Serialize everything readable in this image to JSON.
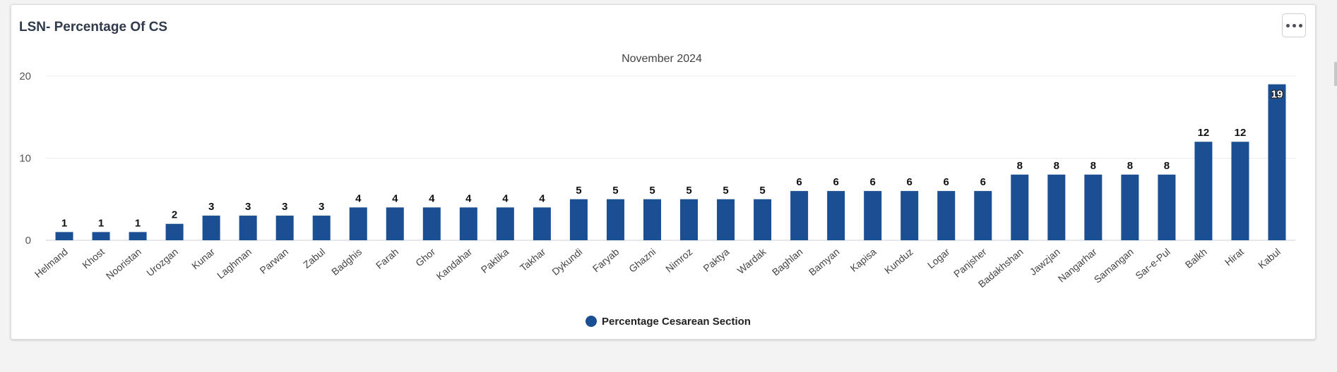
{
  "card": {
    "title": "LSN- Percentage Of CS",
    "menu_icon": "more-horizontal-icon"
  },
  "chart_data": {
    "type": "bar",
    "subtitle": "November 2024",
    "series": [
      {
        "name": "Percentage Cesarean Section",
        "color": "#1b4f93",
        "values": [
          1,
          1,
          1,
          2,
          3,
          3,
          3,
          3,
          4,
          4,
          4,
          4,
          4,
          4,
          5,
          5,
          5,
          5,
          5,
          5,
          6,
          6,
          6,
          6,
          6,
          6,
          8,
          8,
          8,
          8,
          8,
          12,
          12,
          19
        ]
      }
    ],
    "categories": [
      "Helmand",
      "Khost",
      "Nooristan",
      "Urozgan",
      "Kunar",
      "Laghman",
      "Parwan",
      "Zabul",
      "Badghis",
      "Farah",
      "Ghor",
      "Kandahar",
      "Paktika",
      "Takhar",
      "Dykundi",
      "Faryab",
      "Ghazni",
      "Nimroz",
      "Paktya",
      "Wardak",
      "Baghlan",
      "Bamyan",
      "Kapisa",
      "Kunduz",
      "Logar",
      "Panjsher",
      "Badakhshan",
      "Jawzjan",
      "Nangarhar",
      "Samangan",
      "Sar-e-Pul",
      "Balkh",
      "Hirat",
      "Kabul"
    ],
    "ylim": [
      0,
      20
    ],
    "yticks": [
      0,
      10,
      20
    ],
    "grid": true,
    "legend_position": "bottom-center"
  }
}
